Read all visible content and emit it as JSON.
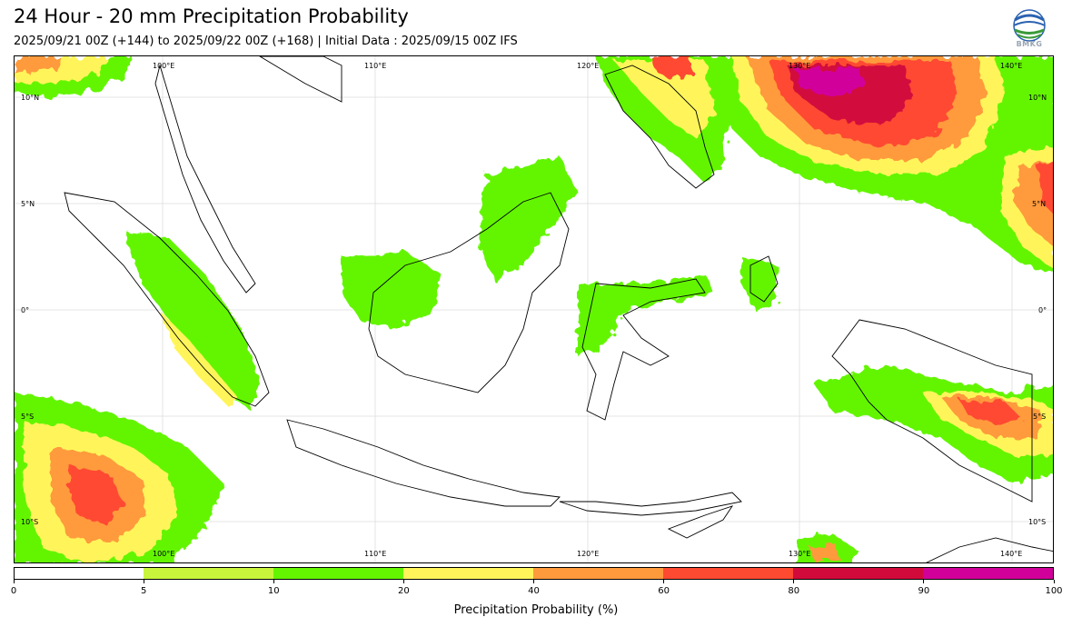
{
  "header": {
    "title": "24 Hour - 20 mm Precipitation Probability",
    "subtitle": "2025/09/21 00Z (+144) to 2025/09/22 00Z (+168) | Initial Data : 2025/09/15 00Z IFS",
    "logo_text": "BMKG"
  },
  "map": {
    "region": "Indonesia",
    "lon_labels_top": [
      "100°E",
      "110°E",
      "120°E",
      "130°E",
      "140°E"
    ],
    "lon_labels_bottom": [
      "100°E",
      "110°E",
      "120°E",
      "130°E",
      "140°E"
    ],
    "lat_labels_left": [
      "10°N",
      "5°N",
      "0°",
      "5°S",
      "10°S"
    ],
    "lat_labels_right": [
      "10°N",
      "5°N",
      "0°",
      "5°S",
      "10°S"
    ],
    "colors": {
      "band_5_10": "#c8f53c",
      "band_10_20": "#64f500",
      "band_20_40": "#fff55a",
      "band_40_60": "#ff9a3c",
      "band_60_80": "#ff4a32",
      "band_80_90": "#d20a3c",
      "band_90_100": "#d2009b",
      "coastline": "#000000"
    }
  },
  "colorbar": {
    "label": "Precipitation Probability (%)",
    "ticks": [
      "0",
      "5",
      "10",
      "20",
      "40",
      "60",
      "80",
      "90",
      "100"
    ],
    "colors": [
      "#ffffff",
      "#c8f53c",
      "#64f500",
      "#fff55a",
      "#ff9a3c",
      "#ff4a32",
      "#d20a3c",
      "#d2009b"
    ]
  }
}
